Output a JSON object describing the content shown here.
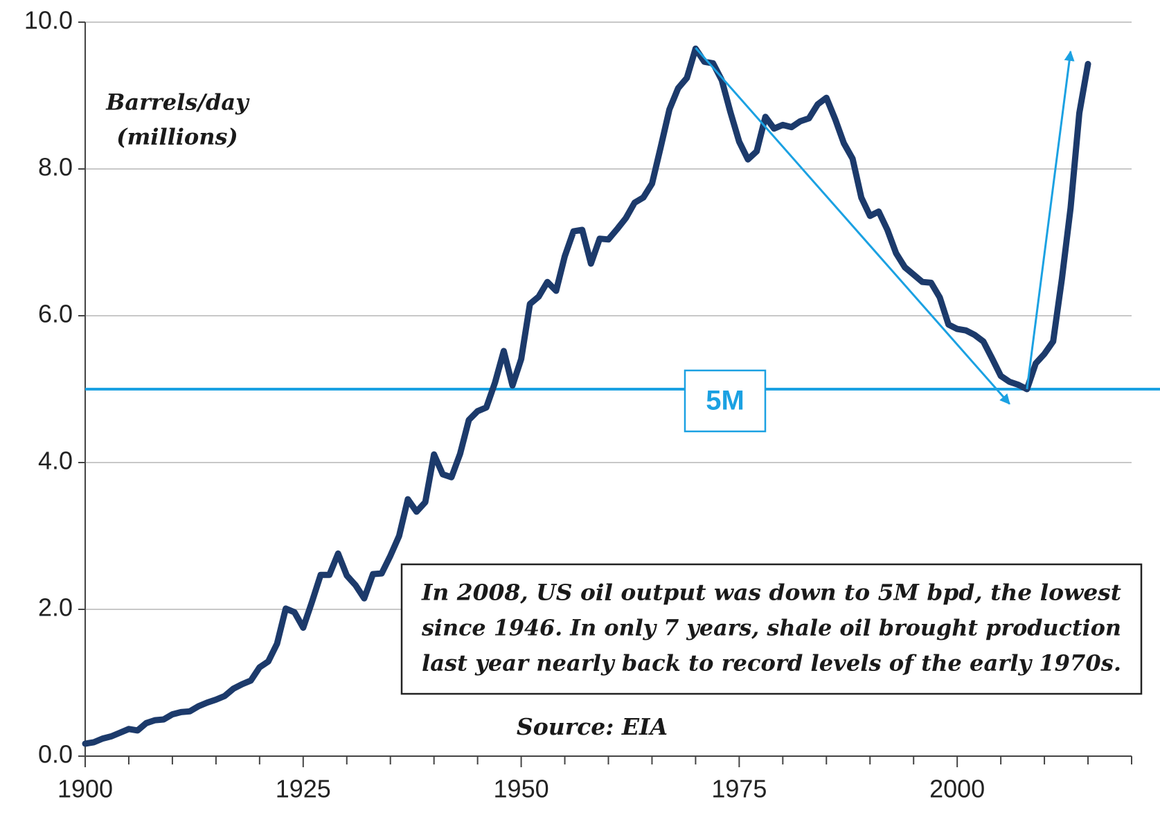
{
  "chart_data": {
    "type": "line",
    "y_label": [
      "Barrels/day",
      "(millions)"
    ],
    "source": "Source: EIA",
    "x": [
      1900,
      1901,
      1902,
      1903,
      1904,
      1905,
      1906,
      1907,
      1908,
      1909,
      1910,
      1911,
      1912,
      1913,
      1914,
      1915,
      1916,
      1917,
      1918,
      1919,
      1920,
      1921,
      1922,
      1923,
      1924,
      1925,
      1926,
      1927,
      1928,
      1929,
      1930,
      1931,
      1932,
      1933,
      1934,
      1935,
      1936,
      1937,
      1938,
      1939,
      1940,
      1941,
      1942,
      1943,
      1944,
      1945,
      1946,
      1947,
      1948,
      1949,
      1950,
      1951,
      1952,
      1953,
      1954,
      1955,
      1956,
      1957,
      1958,
      1959,
      1960,
      1961,
      1962,
      1963,
      1964,
      1965,
      1966,
      1967,
      1968,
      1969,
      1970,
      1971,
      1972,
      1973,
      1974,
      1975,
      1976,
      1977,
      1978,
      1979,
      1980,
      1981,
      1982,
      1983,
      1984,
      1985,
      1986,
      1987,
      1988,
      1989,
      1990,
      1991,
      1992,
      1993,
      1994,
      1995,
      1996,
      1997,
      1998,
      1999,
      2000,
      2001,
      2002,
      2003,
      2004,
      2005,
      2006,
      2007,
      2008,
      2009,
      2010,
      2011,
      2012,
      2013,
      2014,
      2015
    ],
    "values": [
      0.17,
      0.19,
      0.24,
      0.27,
      0.32,
      0.37,
      0.35,
      0.45,
      0.49,
      0.5,
      0.57,
      0.6,
      0.61,
      0.68,
      0.73,
      0.77,
      0.82,
      0.92,
      0.98,
      1.03,
      1.21,
      1.29,
      1.53,
      2.01,
      1.96,
      1.75,
      2.1,
      2.47,
      2.47,
      2.76,
      2.46,
      2.33,
      2.15,
      2.48,
      2.49,
      2.73,
      3.0,
      3.5,
      3.33,
      3.46,
      4.11,
      3.84,
      3.8,
      4.12,
      4.58,
      4.7,
      4.75,
      5.09,
      5.52,
      5.05,
      5.41,
      6.16,
      6.26,
      6.46,
      6.34,
      6.81,
      7.15,
      7.17,
      6.71,
      7.05,
      7.04,
      7.18,
      7.33,
      7.54,
      7.61,
      7.8,
      8.3,
      8.81,
      9.1,
      9.24,
      9.64,
      9.46,
      9.44,
      9.21,
      8.77,
      8.37,
      8.13,
      8.24,
      8.71,
      8.55,
      8.6,
      8.57,
      8.65,
      8.69,
      8.88,
      8.97,
      8.68,
      8.35,
      8.14,
      7.61,
      7.36,
      7.42,
      7.17,
      6.85,
      6.66,
      6.56,
      6.46,
      6.45,
      6.25,
      5.88,
      5.82,
      5.8,
      5.74,
      5.65,
      5.42,
      5.18,
      5.1,
      5.06,
      5.0,
      5.35,
      5.48,
      5.65,
      6.5,
      7.47,
      8.76,
      9.43
    ],
    "color": "#1c3a6b",
    "xlim": [
      1900,
      2020
    ],
    "xticks": [
      1900,
      1925,
      1950,
      1975,
      2000
    ],
    "xminor_ticks": [
      1905,
      1910,
      1915,
      1920,
      1930,
      1935,
      1940,
      1945,
      1955,
      1960,
      1965,
      1970,
      1980,
      1985,
      1990,
      1995,
      2005,
      2010,
      2015,
      2020
    ],
    "ylim": [
      0,
      10
    ],
    "yticks": [
      {
        "value": 0,
        "label": "0.0"
      },
      {
        "value": 2,
        "label": "2.0"
      },
      {
        "value": 4,
        "label": "4.0"
      },
      {
        "value": 6,
        "label": "6.0"
      },
      {
        "value": 8,
        "label": "8.0"
      },
      {
        "value": 10,
        "label": "10.0"
      }
    ],
    "grid": true,
    "reference_line": {
      "value": 5,
      "label": "5M",
      "color": "#1ba1e2"
    },
    "arrows": [
      {
        "x": [
          1970,
          2006
        ],
        "y": [
          9.65,
          4.8
        ]
      },
      {
        "x": [
          2008,
          2013
        ],
        "y": [
          5.0,
          9.6
        ]
      }
    ],
    "annotation": [
      "In 2008, US oil output was down to 5M bpd, the lowest",
      "since 1946. In only 7 years, shale oil brought production",
      "last year nearly back to record levels of the early 1970s."
    ]
  }
}
